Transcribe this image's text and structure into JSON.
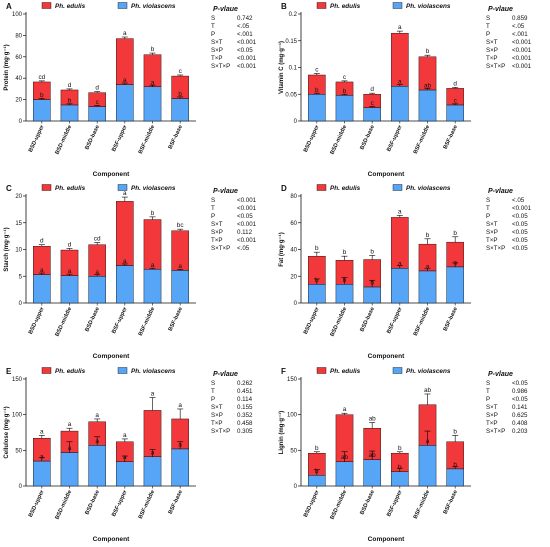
{
  "colors": {
    "ph_edulis": "#f2383a",
    "ph_violascens": "#56a5f6",
    "axis": "#111111"
  },
  "chart_data": [
    {
      "type": "bar",
      "stacked": true,
      "panel_label": "A",
      "legend": [
        "Ph. edulis",
        "Ph. violascens"
      ],
      "categories": [
        "BSD-upper",
        "BSD-middle",
        "BSD-base",
        "BSF-upper",
        "BSF-middle",
        "BSF-base"
      ],
      "xlabel": "Component",
      "ylabel": "Protein (mg·g⁻¹)",
      "ylim": [
        0,
        100
      ],
      "yticks": [
        0,
        20,
        40,
        60,
        80,
        100
      ],
      "series": [
        {
          "name": "Ph. violascens",
          "values": [
            20,
            15,
            13.5,
            34,
            32,
            21
          ],
          "errors": [
            1.2,
            1,
            1,
            1.5,
            1.5,
            1.5
          ],
          "letters": [
            "b",
            "b",
            "c",
            "a",
            "a",
            "b"
          ]
        },
        {
          "name": "Ph. edulis",
          "values": [
            16.5,
            14,
            13,
            43,
            30,
            21
          ],
          "errors": [
            1,
            1,
            1,
            1.5,
            1.5,
            1
          ],
          "letters": [
            "cd",
            "d",
            "d",
            "a",
            "b",
            "c"
          ]
        }
      ],
      "pvalue_title": "P-vlaue",
      "pvalues": [
        [
          "S",
          "0.742"
        ],
        [
          "T",
          "<.05"
        ],
        [
          "P",
          "<.001"
        ],
        [
          "S×T",
          "<0.001"
        ],
        [
          "S×P",
          "<0.05"
        ],
        [
          "T×P",
          "<0.001"
        ],
        [
          "S×T×P",
          "<0.001"
        ]
      ]
    },
    {
      "type": "bar",
      "stacked": true,
      "panel_label": "B",
      "legend": [
        "Ph. edulis",
        "Ph. violascens"
      ],
      "categories": [
        "BSD-upper",
        "BSD-middle",
        "BSD-base",
        "BSF-upper",
        "BSF-middle",
        "BSF-base"
      ],
      "xlabel": "Component",
      "ylabel": "Vitamin C (mg·g⁻¹)",
      "ylim": [
        0,
        0.2
      ],
      "yticks": [
        0,
        0.05,
        0.1,
        0.15,
        0.2
      ],
      "series": [
        {
          "name": "Ph. violascens",
          "values": [
            0.05,
            0.048,
            0.025,
            0.065,
            0.058,
            0.03
          ],
          "errors": [
            0.002,
            0.002,
            0.002,
            0.003,
            0.003,
            0.002
          ],
          "letters": [
            "b",
            "b",
            "c",
            "a",
            "ab",
            "c"
          ]
        },
        {
          "name": "Ph. edulis",
          "values": [
            0.036,
            0.025,
            0.025,
            0.099,
            0.062,
            0.031
          ],
          "errors": [
            0.003,
            0.002,
            0.002,
            0.004,
            0.003,
            0.002
          ],
          "letters": [
            "c",
            "c",
            "d",
            "a",
            "b",
            "d"
          ]
        }
      ],
      "pvalue_title": "P-vlaue",
      "pvalues": [
        [
          "S",
          "0.859"
        ],
        [
          "T",
          "<.05"
        ],
        [
          "P",
          "<.001"
        ],
        [
          "S×T",
          "<0.001"
        ],
        [
          "S×P",
          "<0.001"
        ],
        [
          "T×P",
          "<0.001"
        ],
        [
          "S×T×P",
          "<0.001"
        ]
      ]
    },
    {
      "type": "bar",
      "stacked": true,
      "panel_label": "C",
      "legend": [
        "Ph. edulis",
        "Ph. violascens"
      ],
      "categories": [
        "BSD-upper",
        "BSD-middle",
        "BSD-base",
        "BSF-upper",
        "BSF-middle",
        "BSF-base"
      ],
      "xlabel": "Component",
      "ylabel": "Starch (mg·g⁻¹)",
      "ylim": [
        0,
        20
      ],
      "yticks": [
        0,
        5,
        10,
        15,
        20
      ],
      "series": [
        {
          "name": "Ph. violascens",
          "values": [
            5.3,
            5.1,
            5.0,
            7.0,
            6.3,
            6.1
          ],
          "errors": [
            0.3,
            0.3,
            0.3,
            0.3,
            0.2,
            0.2
          ],
          "letters": [
            "a",
            "a",
            "a",
            "a",
            "a",
            "a"
          ]
        },
        {
          "name": "Ph. edulis",
          "values": [
            5.3,
            4.8,
            5.9,
            12.0,
            9.3,
            7.4
          ],
          "errors": [
            0.3,
            0.3,
            0.4,
            0.8,
            0.5,
            0.3
          ],
          "letters": [
            "d",
            "d",
            "cd",
            "a",
            "b",
            "bc"
          ]
        }
      ],
      "pvalue_title": "P-vlaue",
      "pvalues": [
        [
          "S",
          "<0.001"
        ],
        [
          "T",
          "<0.001"
        ],
        [
          "P",
          "<0.05"
        ],
        [
          "S×T",
          "<0.001"
        ],
        [
          "S×P",
          "0.112"
        ],
        [
          "T×P",
          "<0.001"
        ],
        [
          "S×T×P",
          "<.05"
        ]
      ]
    },
    {
      "type": "bar",
      "stacked": true,
      "panel_label": "D",
      "legend": [
        "Ph. edulis",
        "Ph. violascens"
      ],
      "categories": [
        "BSD-upper",
        "BSD-middle",
        "BSD-base",
        "BSF-upper",
        "BSF-middle",
        "BSF-base"
      ],
      "xlabel": "Component",
      "ylabel": "Fat (mg·g⁻¹)",
      "ylim": [
        0,
        80
      ],
      "yticks": [
        0,
        20,
        40,
        60,
        80
      ],
      "series": [
        {
          "name": "Ph. violascens",
          "values": [
            14,
            14,
            12,
            26,
            24,
            27
          ],
          "errors": [
            4,
            5,
            5,
            2,
            2,
            3
          ],
          "letters": [
            "b",
            "b",
            "b",
            "a",
            "a",
            "a"
          ]
        },
        {
          "name": "Ph. edulis",
          "values": [
            21,
            18,
            20.5,
            38,
            20,
            18.5
          ],
          "errors": [
            3,
            3,
            3,
            1.5,
            4,
            4
          ],
          "letters": [
            "b",
            "b",
            "b",
            "a",
            "b",
            "b"
          ]
        }
      ],
      "pvalue_title": "P-vlaue",
      "pvalues": [
        [
          "S",
          "<.05"
        ],
        [
          "T",
          "<0.001"
        ],
        [
          "P",
          "<0.05"
        ],
        [
          "S×T",
          "<0.05"
        ],
        [
          "S×P",
          "<0.05"
        ],
        [
          "T×P",
          "<0.05"
        ],
        [
          "S×T×P",
          "<0.05"
        ]
      ]
    },
    {
      "type": "bar",
      "stacked": true,
      "panel_label": "E",
      "legend": [
        "Ph. edulis",
        "Ph. violascens"
      ],
      "categories": [
        "BSD-upper",
        "BSD-middle",
        "BSD-base",
        "BSF-upper",
        "BSF-middle",
        "BSF-base"
      ],
      "xlabel": "Component",
      "ylabel": "Cellulose (mg·g⁻¹)",
      "ylim": [
        0,
        150
      ],
      "yticks": [
        0,
        50,
        100,
        150
      ],
      "series": [
        {
          "name": "Ph. violascens",
          "values": [
            35,
            47,
            57,
            34,
            41,
            52
          ],
          "errors": [
            5,
            15,
            12,
            8,
            10,
            10
          ],
          "letters": [
            "a",
            "a",
            "a",
            "a",
            "a",
            "a"
          ]
        },
        {
          "name": "Ph. edulis",
          "values": [
            32,
            30,
            33,
            28,
            65,
            42
          ],
          "errors": [
            4,
            4,
            4,
            4,
            18,
            14
          ],
          "letters": [
            "a",
            "a",
            "a",
            "a",
            "a",
            "a"
          ]
        }
      ],
      "pvalue_title": "P-vlaue",
      "pvalues": [
        [
          "S",
          "0.262"
        ],
        [
          "T",
          "0.451"
        ],
        [
          "P",
          "0.114"
        ],
        [
          "S×T",
          "0.155"
        ],
        [
          "S×P",
          "0.352"
        ],
        [
          "T×P",
          "0.458"
        ],
        [
          "S×T×P",
          "0.305"
        ]
      ]
    },
    {
      "type": "bar",
      "stacked": true,
      "panel_label": "F",
      "legend": [
        "Ph. edulis",
        "Ph. violascens"
      ],
      "categories": [
        "BSD-upper",
        "BSD-middle",
        "BSD-base",
        "BSF-upper",
        "BSF-middle",
        "BSF-base"
      ],
      "xlabel": "Component",
      "ylabel": "Lignin (mg·g⁻¹)",
      "ylim": [
        0,
        150
      ],
      "yticks": [
        0,
        50,
        100,
        150
      ],
      "series": [
        {
          "name": "Ph. violascens",
          "values": [
            15,
            34,
            37,
            20,
            57,
            24
          ],
          "errors": [
            8,
            14,
            12,
            5,
            20,
            3
          ],
          "letters": [
            "b",
            "ab",
            "ab",
            "b",
            "a",
            "b"
          ]
        },
        {
          "name": "Ph. edulis",
          "values": [
            31,
            66,
            44,
            26,
            57,
            38
          ],
          "errors": [
            2,
            2,
            8,
            2,
            15,
            9
          ],
          "letters": [
            "b",
            "a",
            "ab",
            "b",
            "ab",
            "b"
          ]
        }
      ],
      "pvalue_title": "P-vlaue",
      "pvalues": [
        [
          "S",
          "<0.05"
        ],
        [
          "T",
          "0.986"
        ],
        [
          "P",
          "<0.05"
        ],
        [
          "S×T",
          "0.141"
        ],
        [
          "S×P",
          "0.625"
        ],
        [
          "T×P",
          "0.408"
        ],
        [
          "S×T×P",
          "0.203"
        ]
      ]
    }
  ]
}
